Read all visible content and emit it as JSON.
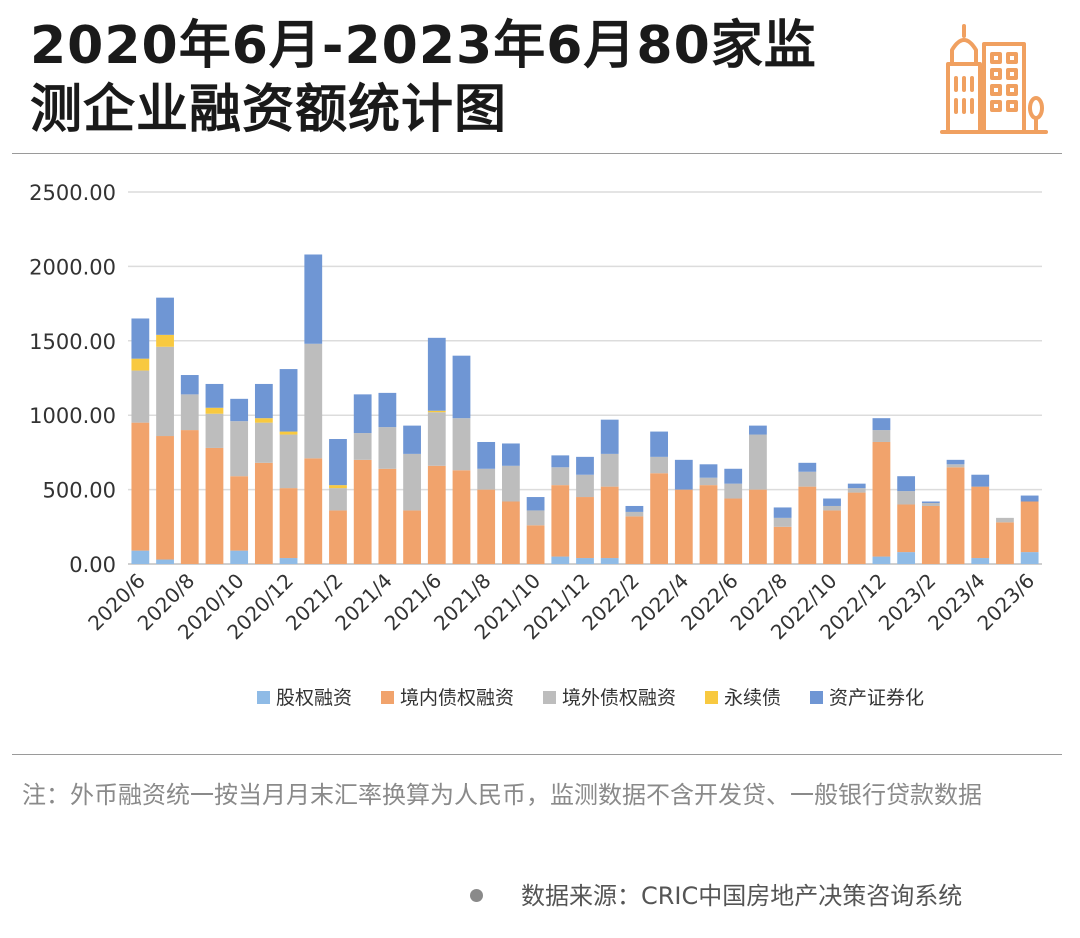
{
  "title": {
    "line1": "2020年6月-2023年6月80家监",
    "line2": "测企业融资额统计图"
  },
  "logo": {
    "icon": "buildings-icon",
    "color": "#f0a060"
  },
  "note": "注：外币融资统一按当月月末汇率换算为人民币，监测数据不含开发贷、一般银行贷款数据",
  "source": "数据来源：CRIC中国房地产决策咨询系统",
  "chart_data": {
    "type": "bar",
    "stacked": true,
    "title": "",
    "xlabel": "",
    "ylabel": "",
    "ylim": [
      0,
      2500
    ],
    "yticks": [
      "0.00",
      "500.00",
      "1000.00",
      "1500.00",
      "2000.00",
      "2500.00"
    ],
    "grid": true,
    "legend_position": "bottom",
    "categories": [
      "2020/6",
      "2020/7",
      "2020/8",
      "2020/9",
      "2020/10",
      "2020/11",
      "2020/12",
      "2021/1",
      "2021/2",
      "2021/3",
      "2021/4",
      "2021/5",
      "2021/6",
      "2021/7",
      "2021/8",
      "2021/9",
      "2021/10",
      "2021/11",
      "2021/12",
      "2022/1",
      "2022/2",
      "2022/3",
      "2022/4",
      "2022/5",
      "2022/6",
      "2022/7",
      "2022/8",
      "2022/9",
      "2022/10",
      "2022/11",
      "2022/12",
      "2023/1",
      "2023/2",
      "2023/3",
      "2023/4",
      "2023/5",
      "2023/6"
    ],
    "xtick_labels": [
      "2020/6",
      "2020/8",
      "2020/10",
      "2020/12",
      "2021/2",
      "2021/4",
      "2021/6",
      "2021/8",
      "2021/10",
      "2021/12",
      "2022/2",
      "2022/4",
      "2022/6",
      "2022/8",
      "2022/10",
      "2022/12",
      "2023/2",
      "2023/4",
      "2023/6"
    ],
    "series": [
      {
        "name": "股权融资",
        "color": "#8fbbe6",
        "values": [
          90,
          30,
          0,
          0,
          90,
          0,
          40,
          0,
          0,
          0,
          0,
          0,
          0,
          0,
          0,
          0,
          0,
          50,
          40,
          40,
          0,
          0,
          0,
          0,
          0,
          0,
          0,
          0,
          0,
          0,
          50,
          80,
          0,
          0,
          40,
          0,
          80
        ]
      },
      {
        "name": "境内债权融资",
        "color": "#f1a36c",
        "values": [
          860,
          830,
          900,
          780,
          500,
          680,
          470,
          710,
          360,
          700,
          640,
          360,
          660,
          630,
          500,
          420,
          260,
          480,
          410,
          480,
          320,
          610,
          500,
          530,
          440,
          500,
          250,
          520,
          360,
          480,
          770,
          320,
          390,
          650,
          480,
          280,
          340
        ]
      },
      {
        "name": "境外债权融资",
        "color": "#bdbdbd",
        "values": [
          350,
          600,
          240,
          230,
          370,
          270,
          360,
          770,
          150,
          180,
          280,
          380,
          360,
          350,
          140,
          240,
          100,
          120,
          150,
          220,
          30,
          110,
          0,
          50,
          100,
          370,
          60,
          100,
          30,
          30,
          80,
          90,
          20,
          20,
          0,
          30,
          0
        ]
      },
      {
        "name": "永续债",
        "color": "#f8c940",
        "values": [
          80,
          80,
          0,
          40,
          0,
          30,
          20,
          0,
          20,
          0,
          0,
          0,
          10,
          0,
          0,
          0,
          0,
          0,
          0,
          0,
          0,
          0,
          0,
          0,
          0,
          0,
          0,
          0,
          0,
          0,
          0,
          0,
          0,
          0,
          0,
          0,
          0
        ]
      },
      {
        "name": "资产证券化",
        "color": "#6f96d4",
        "values": [
          270,
          250,
          130,
          160,
          150,
          230,
          420,
          600,
          310,
          260,
          230,
          190,
          490,
          420,
          180,
          150,
          90,
          80,
          120,
          230,
          40,
          170,
          200,
          90,
          100,
          60,
          70,
          60,
          50,
          30,
          80,
          100,
          10,
          30,
          80,
          0,
          40
        ]
      }
    ]
  }
}
